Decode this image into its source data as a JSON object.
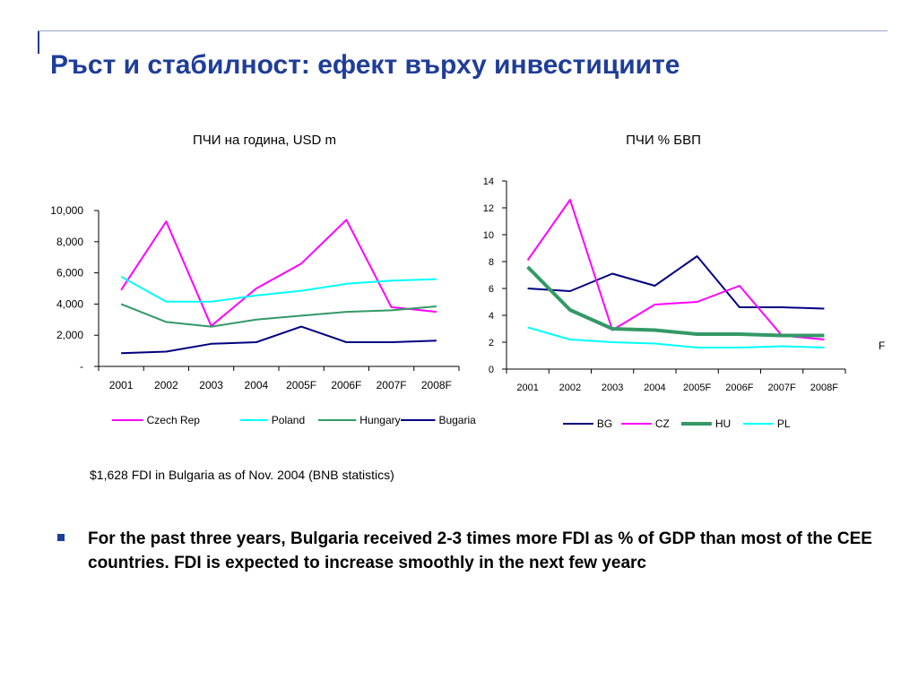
{
  "slide": {
    "title": "Ръст и стабилност: ефект върху инвестициите",
    "note": "$1,628 FDI in Bulgaria as of Nov. 2004 (BNB statistics)",
    "stray_label": "F",
    "bullet": "For the past three years, Bulgaria received 2-3 times more FDI as % of GDP than most of the CEE countries. FDI is expected to increase smoothly in the next few yearc"
  },
  "chart_data": [
    {
      "type": "line",
      "title": "ПЧИ на година, USD m",
      "categories": [
        "2001",
        "2002",
        "2003",
        "2004",
        "2005F",
        "2006F",
        "2007F",
        "2008F"
      ],
      "ylim": [
        0,
        10000
      ],
      "yticks": [
        0,
        2000,
        4000,
        6000,
        8000,
        10000
      ],
      "ytick_labels": [
        "-",
        "2,000",
        "4,000",
        "6,000",
        "8,000",
        "10,000"
      ],
      "legend_position": "bottom",
      "grid": false,
      "series": [
        {
          "name": "Czech Rep",
          "color": "#ff00ff",
          "width": 2,
          "values": [
            4900,
            9300,
            2600,
            5000,
            6600,
            9400,
            3800,
            3500
          ]
        },
        {
          "name": "Poland",
          "color": "#00ffff",
          "width": 2,
          "values": [
            5750,
            4150,
            4150,
            4550,
            4850,
            5300,
            5500,
            5600
          ]
        },
        {
          "name": "Hungary",
          "color": "#339966",
          "width": 2,
          "values": [
            4000,
            2850,
            2550,
            3000,
            3250,
            3500,
            3600,
            3850
          ]
        },
        {
          "name": "Bugaria",
          "color": "#000080",
          "width": 2,
          "values": [
            850,
            950,
            1450,
            1550,
            2550,
            1550,
            1550,
            1650
          ]
        }
      ]
    },
    {
      "type": "line",
      "title": "ПЧИ % БВП",
      "categories": [
        "2001",
        "2002",
        "2003",
        "2004",
        "2005F",
        "2006F",
        "2007F",
        "2008F"
      ],
      "ylim": [
        0,
        14
      ],
      "yticks": [
        0,
        2,
        4,
        6,
        8,
        10,
        12,
        14
      ],
      "ytick_labels": [
        "0",
        "2",
        "4",
        "6",
        "8",
        "10",
        "12",
        "14"
      ],
      "legend_position": "bottom",
      "grid": false,
      "series": [
        {
          "name": "BG",
          "color": "#000080",
          "width": 2,
          "values": [
            6.0,
            5.8,
            7.1,
            6.2,
            8.4,
            4.6,
            4.6,
            4.5
          ]
        },
        {
          "name": "CZ",
          "color": "#ff00ff",
          "width": 2,
          "values": [
            8.1,
            12.6,
            2.9,
            4.8,
            5.0,
            6.2,
            2.5,
            2.2
          ]
        },
        {
          "name": "HU",
          "color": "#339966",
          "width": 4,
          "values": [
            7.6,
            4.4,
            3.0,
            2.9,
            2.6,
            2.6,
            2.5,
            2.5
          ]
        },
        {
          "name": "PL",
          "color": "#00ffff",
          "width": 2,
          "values": [
            3.1,
            2.2,
            2.0,
            1.9,
            1.6,
            1.6,
            1.7,
            1.6
          ]
        }
      ]
    }
  ]
}
